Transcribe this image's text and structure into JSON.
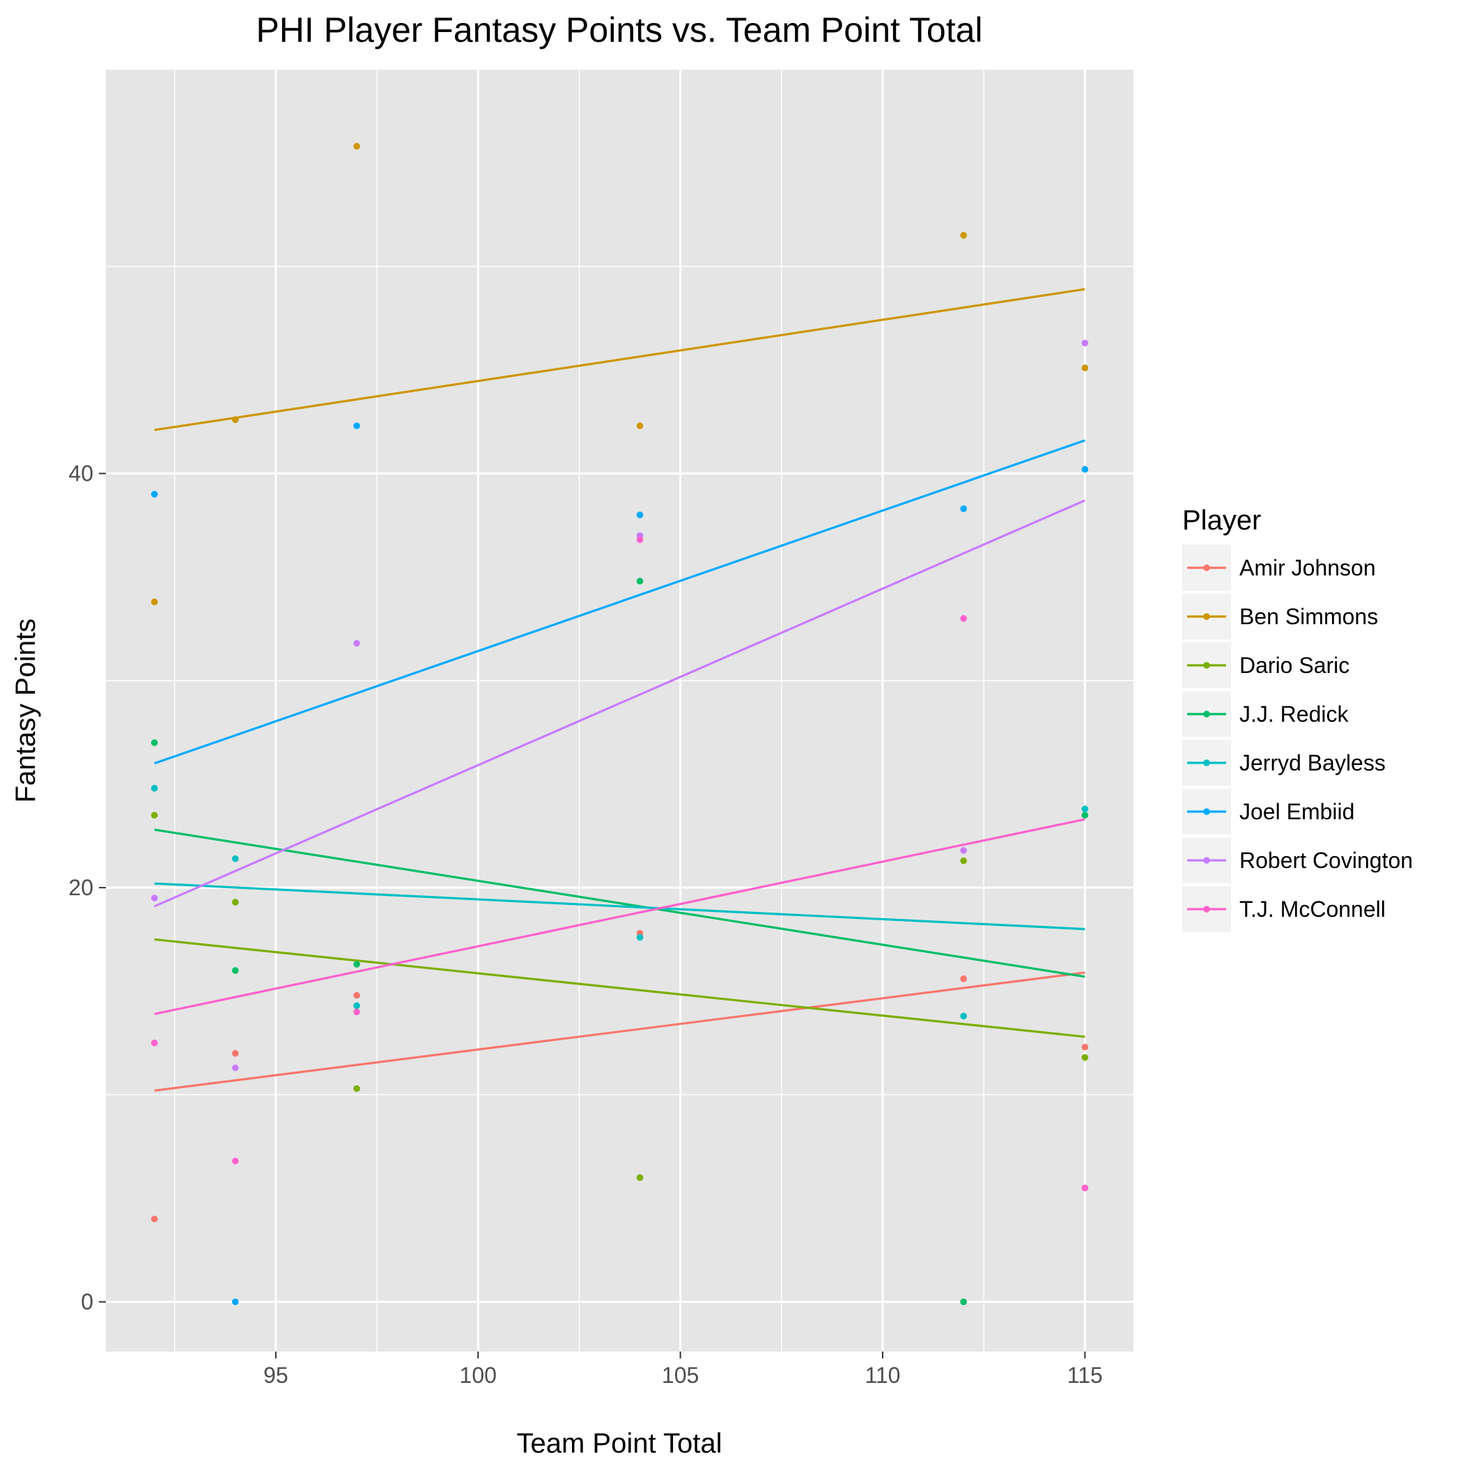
{
  "chart_data": {
    "type": "scatter",
    "title": "PHI Player Fantasy Points vs. Team Point Total",
    "xlabel": "Team Point Total",
    "ylabel": "Fantasy Points",
    "xlim": [
      90.8,
      116.2
    ],
    "ylim": [
      -2.4,
      59.5
    ],
    "x_ticks": [
      95,
      100,
      105,
      110,
      115
    ],
    "y_ticks": [
      0,
      20,
      40
    ],
    "x_tick_labels": [
      "95",
      "100",
      "105",
      "110",
      "115"
    ],
    "y_tick_labels": [
      "0",
      "20",
      "40"
    ],
    "grid": true,
    "legend": {
      "title": "Player",
      "position": "right"
    },
    "colors": {
      "panel_background": "#E5E5E5",
      "grid": "#FFFFFF"
    },
    "series": [
      {
        "name": "Amir Johnson",
        "color": "#F8766D",
        "points": [
          [
            92,
            4.0
          ],
          [
            94,
            12.0
          ],
          [
            97,
            14.8
          ],
          [
            104,
            17.8
          ],
          [
            112,
            15.6
          ],
          [
            115,
            12.3
          ]
        ],
        "trend": [
          [
            92,
            10.2
          ],
          [
            115,
            15.9
          ]
        ]
      },
      {
        "name": "Ben Simmons",
        "color": "#CD9600",
        "points": [
          [
            92,
            33.8
          ],
          [
            94,
            42.6
          ],
          [
            97,
            55.8
          ],
          [
            104,
            42.3
          ],
          [
            112,
            51.5
          ],
          [
            115,
            45.1
          ]
        ],
        "trend": [
          [
            92,
            42.1
          ],
          [
            115,
            48.9
          ]
        ]
      },
      {
        "name": "Dario Saric",
        "color": "#7CAE00",
        "points": [
          [
            92,
            23.5
          ],
          [
            94,
            19.3
          ],
          [
            97,
            10.3
          ],
          [
            104,
            6.0
          ],
          [
            112,
            21.3
          ],
          [
            115,
            11.8
          ]
        ],
        "trend": [
          [
            92,
            17.5
          ],
          [
            115,
            12.8
          ]
        ]
      },
      {
        "name": "J.J. Redick",
        "color": "#00BE67",
        "points": [
          [
            92,
            27.0
          ],
          [
            94,
            16.0
          ],
          [
            97,
            16.3
          ],
          [
            104,
            34.8
          ],
          [
            112,
            0.0
          ],
          [
            115,
            23.5
          ]
        ],
        "trend": [
          [
            92,
            22.8
          ],
          [
            115,
            15.7
          ]
        ]
      },
      {
        "name": "Jerryd Bayless",
        "color": "#00BFC4",
        "points": [
          [
            92,
            24.8
          ],
          [
            94,
            21.4
          ],
          [
            97,
            14.3
          ],
          [
            104,
            17.6
          ],
          [
            112,
            13.8
          ],
          [
            115,
            23.8
          ]
        ],
        "trend": [
          [
            92,
            20.2
          ],
          [
            115,
            18.0
          ]
        ]
      },
      {
        "name": "Joel Embiid",
        "color": "#00A9FF",
        "points": [
          [
            92,
            39.0
          ],
          [
            94,
            0.0
          ],
          [
            97,
            42.3
          ],
          [
            104,
            38.0
          ],
          [
            112,
            38.3
          ],
          [
            115,
            40.2
          ]
        ],
        "trend": [
          [
            92,
            26.0
          ],
          [
            115,
            41.6
          ]
        ]
      },
      {
        "name": "Robert Covington",
        "color": "#C77CFF",
        "points": [
          [
            92,
            19.5
          ],
          [
            94,
            11.3
          ],
          [
            97,
            31.8
          ],
          [
            104,
            37.0
          ],
          [
            112,
            21.8
          ],
          [
            115,
            46.3
          ]
        ],
        "trend": [
          [
            92,
            19.1
          ],
          [
            115,
            38.7
          ]
        ]
      },
      {
        "name": "T.J. McConnell",
        "color": "#FF61CC",
        "points": [
          [
            92,
            12.5
          ],
          [
            94,
            6.8
          ],
          [
            97,
            14.0
          ],
          [
            104,
            36.8
          ],
          [
            112,
            33.0
          ],
          [
            115,
            5.5
          ]
        ],
        "trend": [
          [
            92,
            13.9
          ],
          [
            115,
            23.3
          ]
        ]
      }
    ]
  }
}
